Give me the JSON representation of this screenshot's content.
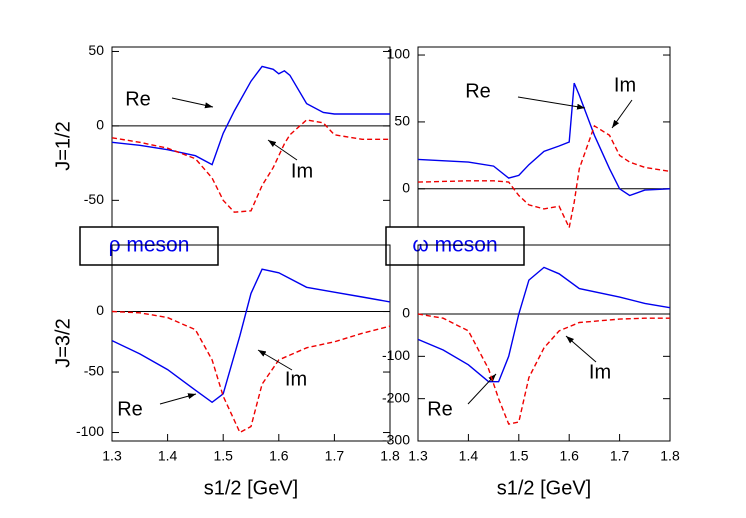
{
  "chart_data": [
    {
      "type": "line",
      "label": "ρ meson",
      "ylabel": "J=1/2",
      "xlim": [
        1.3,
        1.8
      ],
      "ylim": [
        -80,
        53
      ],
      "yticks": [
        -50,
        0,
        50
      ],
      "x": [
        1.3,
        1.35,
        1.4,
        1.45,
        1.48,
        1.5,
        1.52,
        1.55,
        1.57,
        1.59,
        1.6,
        1.61,
        1.62,
        1.65,
        1.68,
        1.7,
        1.75,
        1.8
      ],
      "series": [
        {
          "name": "Re",
          "color": "#0000ee",
          "dash": false,
          "values": [
            -11,
            -13,
            -16,
            -20,
            -26,
            -5,
            10,
            30,
            40,
            38,
            35,
            37,
            34,
            15,
            9,
            8,
            8,
            8
          ]
        },
        {
          "name": "Im",
          "color": "#ee0000",
          "dash": true,
          "values": [
            -8,
            -11,
            -15,
            -22,
            -35,
            -50,
            -58,
            -57,
            -40,
            -28,
            -20,
            -12,
            -6,
            4,
            2,
            -6,
            -9,
            -9
          ]
        }
      ]
    },
    {
      "type": "line",
      "label": "ω meson",
      "xlim": [
        1.3,
        1.8
      ],
      "ylim": [
        -42,
        106
      ],
      "yticks": [
        0,
        50,
        100
      ],
      "x": [
        1.3,
        1.4,
        1.45,
        1.48,
        1.5,
        1.52,
        1.55,
        1.58,
        1.6,
        1.61,
        1.62,
        1.65,
        1.68,
        1.7,
        1.72,
        1.75,
        1.8
      ],
      "series": [
        {
          "name": "Re",
          "color": "#0000ee",
          "dash": false,
          "values": [
            22,
            20,
            17,
            8,
            10,
            18,
            28,
            32,
            35,
            79,
            70,
            40,
            15,
            0,
            -5,
            -1,
            0
          ]
        },
        {
          "name": "Im",
          "color": "#ee0000",
          "dash": true,
          "values": [
            5,
            6,
            6,
            5,
            -5,
            -12,
            -15,
            -13,
            -29,
            -10,
            15,
            47,
            40,
            25,
            20,
            16,
            13
          ]
        }
      ]
    },
    {
      "type": "line",
      "ylabel": "J=3/2",
      "xlabel": "s1/2 [GeV]",
      "xlim": [
        1.3,
        1.8
      ],
      "ylim": [
        -107,
        55
      ],
      "yticks": [
        -100,
        -50,
        0
      ],
      "xticks": [
        1.3,
        1.4,
        1.5,
        1.6,
        1.7,
        1.8
      ],
      "x": [
        1.3,
        1.35,
        1.4,
        1.45,
        1.48,
        1.5,
        1.53,
        1.55,
        1.57,
        1.6,
        1.65,
        1.7,
        1.75,
        1.8
      ],
      "series": [
        {
          "name": "Re",
          "color": "#0000ee",
          "dash": false,
          "values": [
            -24,
            -35,
            -48,
            -65,
            -75,
            -68,
            -20,
            15,
            35,
            32,
            20,
            16,
            12,
            8
          ]
        },
        {
          "name": "Im",
          "color": "#ee0000",
          "dash": true,
          "values": [
            0,
            -1,
            -5,
            -15,
            -40,
            -70,
            -100,
            -95,
            -60,
            -40,
            -30,
            -25,
            -18,
            -12
          ]
        }
      ]
    },
    {
      "type": "line",
      "xlabel": "s1/2 [GeV]",
      "xlim": [
        1.3,
        1.8
      ],
      "ylim": [
        -300,
        163
      ],
      "yticks": [
        -300,
        -200,
        -100,
        0
      ],
      "xticks": [
        1.3,
        1.4,
        1.5,
        1.6,
        1.7,
        1.8
      ],
      "x": [
        1.3,
        1.35,
        1.4,
        1.44,
        1.46,
        1.48,
        1.5,
        1.52,
        1.55,
        1.58,
        1.62,
        1.7,
        1.75,
        1.8
      ],
      "series": [
        {
          "name": "Re",
          "color": "#0000ee",
          "dash": false,
          "values": [
            -60,
            -85,
            -120,
            -160,
            -160,
            -100,
            0,
            80,
            110,
            95,
            60,
            40,
            25,
            15
          ]
        },
        {
          "name": "Im",
          "color": "#ee0000",
          "dash": true,
          "values": [
            0,
            -10,
            -40,
            -130,
            -200,
            -260,
            -255,
            -150,
            -80,
            -40,
            -20,
            -12,
            -10,
            -10
          ]
        }
      ]
    }
  ]
}
